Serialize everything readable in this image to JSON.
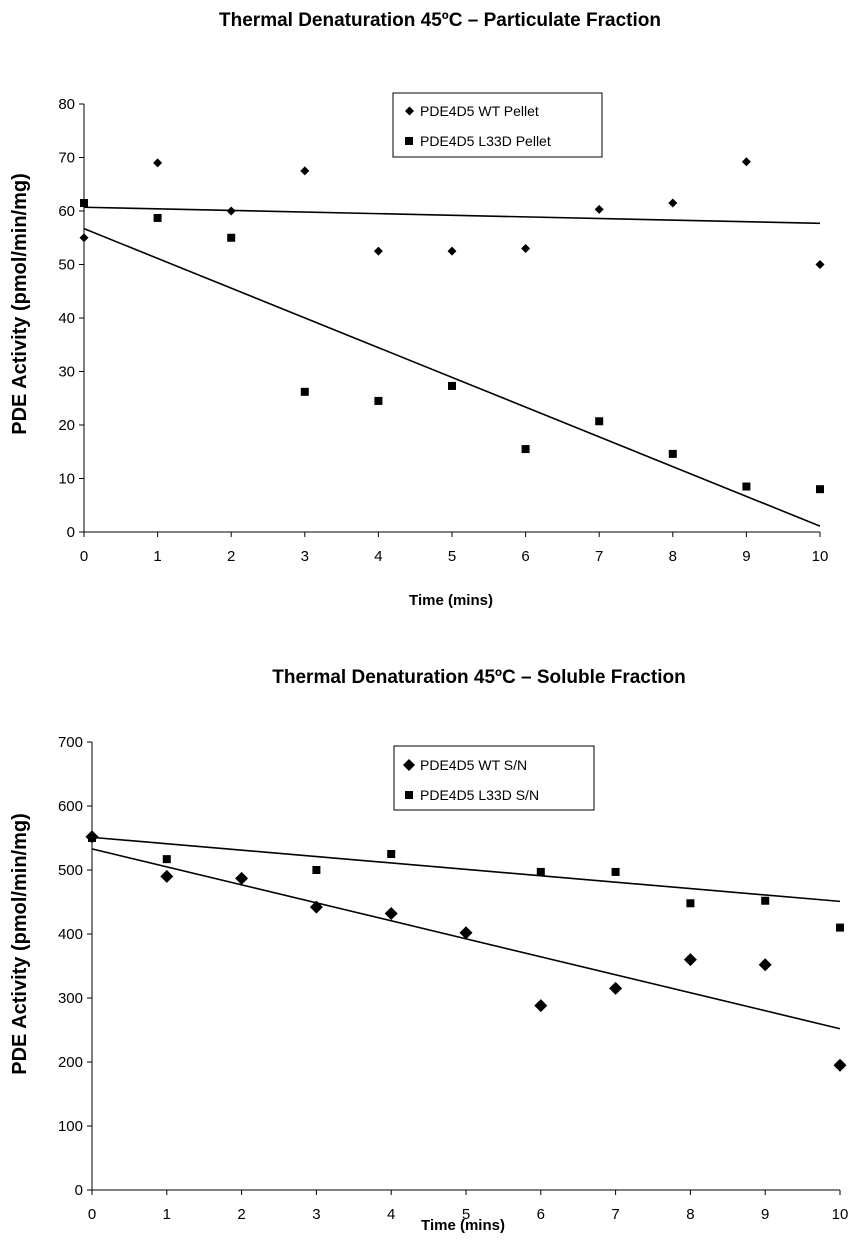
{
  "chart_data": [
    {
      "type": "scatter",
      "title": "Thermal Denaturation 45ºC  – Particulate Fraction",
      "xlabel": "Time (mins)",
      "ylabel": "PDE Activity (pmol/min/mg)",
      "xlim": [
        0,
        10
      ],
      "ylim": [
        0,
        80
      ],
      "xticks": [
        "0",
        "1",
        "2",
        "3",
        "4",
        "5",
        "6",
        "7",
        "8",
        "9",
        "10"
      ],
      "yticks": [
        "0",
        "10",
        "20",
        "30",
        "40",
        "50",
        "60",
        "70",
        "80"
      ],
      "grid": false,
      "legend_position": "top-center",
      "x": [
        0,
        1,
        2,
        3,
        4,
        5,
        6,
        7,
        8,
        9,
        10
      ],
      "series": [
        {
          "name": "PDE4D5 WT Pellet",
          "marker": "diamond",
          "values": [
            55,
            69,
            60,
            67.5,
            52.5,
            52.5,
            53,
            60.3,
            61.5,
            69.2,
            50
          ],
          "trendline": [
            60.7,
            57.7
          ]
        },
        {
          "name": "PDE4D5 L33D Pellet",
          "marker": "square",
          "values": [
            61.5,
            58.7,
            55,
            26.2,
            24.5,
            27.3,
            15.5,
            20.7,
            14.6,
            8.5,
            8
          ],
          "trendline": [
            56.7,
            1.1
          ]
        }
      ]
    },
    {
      "type": "scatter",
      "title": "Thermal Denaturation 45ºC – Soluble Fraction",
      "xlabel": "Time (mins)",
      "ylabel": "PDE Activity (pmol/min/mg)",
      "xlim": [
        0,
        10
      ],
      "ylim": [
        0,
        700
      ],
      "xticks": [
        "0",
        "1",
        "2",
        "3",
        "4",
        "5",
        "6",
        "7",
        "8",
        "9",
        "10"
      ],
      "yticks": [
        "0",
        "100",
        "200",
        "300",
        "400",
        "500",
        "600",
        "700"
      ],
      "grid": false,
      "legend_position": "top-center",
      "x": [
        0,
        1,
        2,
        3,
        4,
        5,
        6,
        7,
        8,
        9,
        10
      ],
      "series": [
        {
          "name": "PDE4D5 WT S/N",
          "marker": "diamond",
          "values": [
            552,
            490,
            487,
            442,
            432,
            402,
            288,
            315,
            360,
            352,
            195
          ],
          "trendline": [
            533,
            252
          ]
        },
        {
          "name": "PDE4D5 L33D S/N",
          "marker": "square",
          "values": [
            550,
            517,
            500,
            525,
            497,
            497,
            448,
            452,
            410
          ],
          "x_override": [
            0,
            1,
            3,
            4,
            6,
            7,
            8,
            9,
            10
          ],
          "trendline": [
            551,
            451
          ]
        }
      ]
    }
  ]
}
